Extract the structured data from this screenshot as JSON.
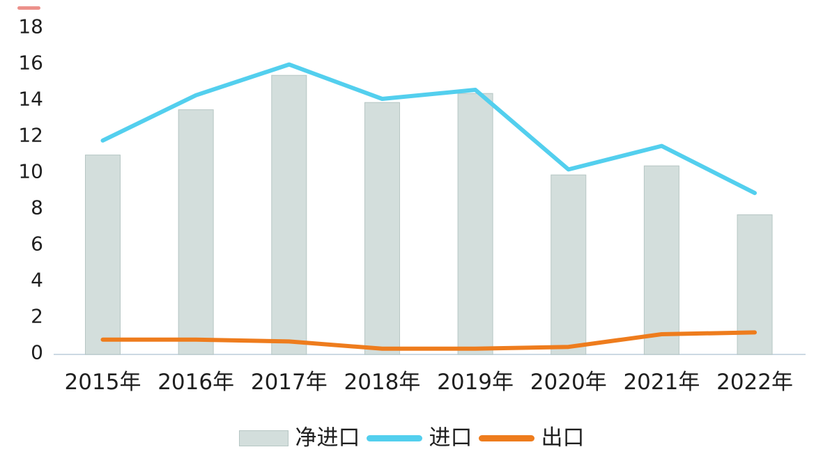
{
  "colors": {
    "bar_fill": "#d3dedc",
    "bar_border": "#b6c6c4",
    "import_line": "#53cfee",
    "export_line": "#ee7c1d",
    "axis_line": "#ccd9e3",
    "text": "#1f1f1f",
    "stray_mark": "#e0483e"
  },
  "chart_data": {
    "type": "bar",
    "subtype": "combo-bar-line",
    "title": "",
    "xlabel": "",
    "ylabel": "",
    "categories": [
      "2015年",
      "2016年",
      "2017年",
      "2018年",
      "2019年",
      "2020年",
      "2021年",
      "2022年"
    ],
    "series": [
      {
        "name": "净进口",
        "type": "bar",
        "values": [
          10.9,
          13.4,
          15.3,
          13.8,
          14.3,
          9.8,
          10.3,
          7.6
        ]
      },
      {
        "name": "进口",
        "type": "line",
        "values": [
          11.7,
          14.2,
          15.9,
          14.0,
          14.5,
          10.1,
          11.4,
          8.8
        ]
      },
      {
        "name": "出口",
        "type": "line",
        "values": [
          0.7,
          0.7,
          0.6,
          0.2,
          0.2,
          0.3,
          1.0,
          1.1
        ]
      }
    ],
    "ylim": [
      0,
      18
    ],
    "y_ticks": [
      0,
      2,
      4,
      6,
      8,
      10,
      12,
      14,
      16,
      18
    ],
    "grid": false,
    "legend_position": "bottom"
  }
}
